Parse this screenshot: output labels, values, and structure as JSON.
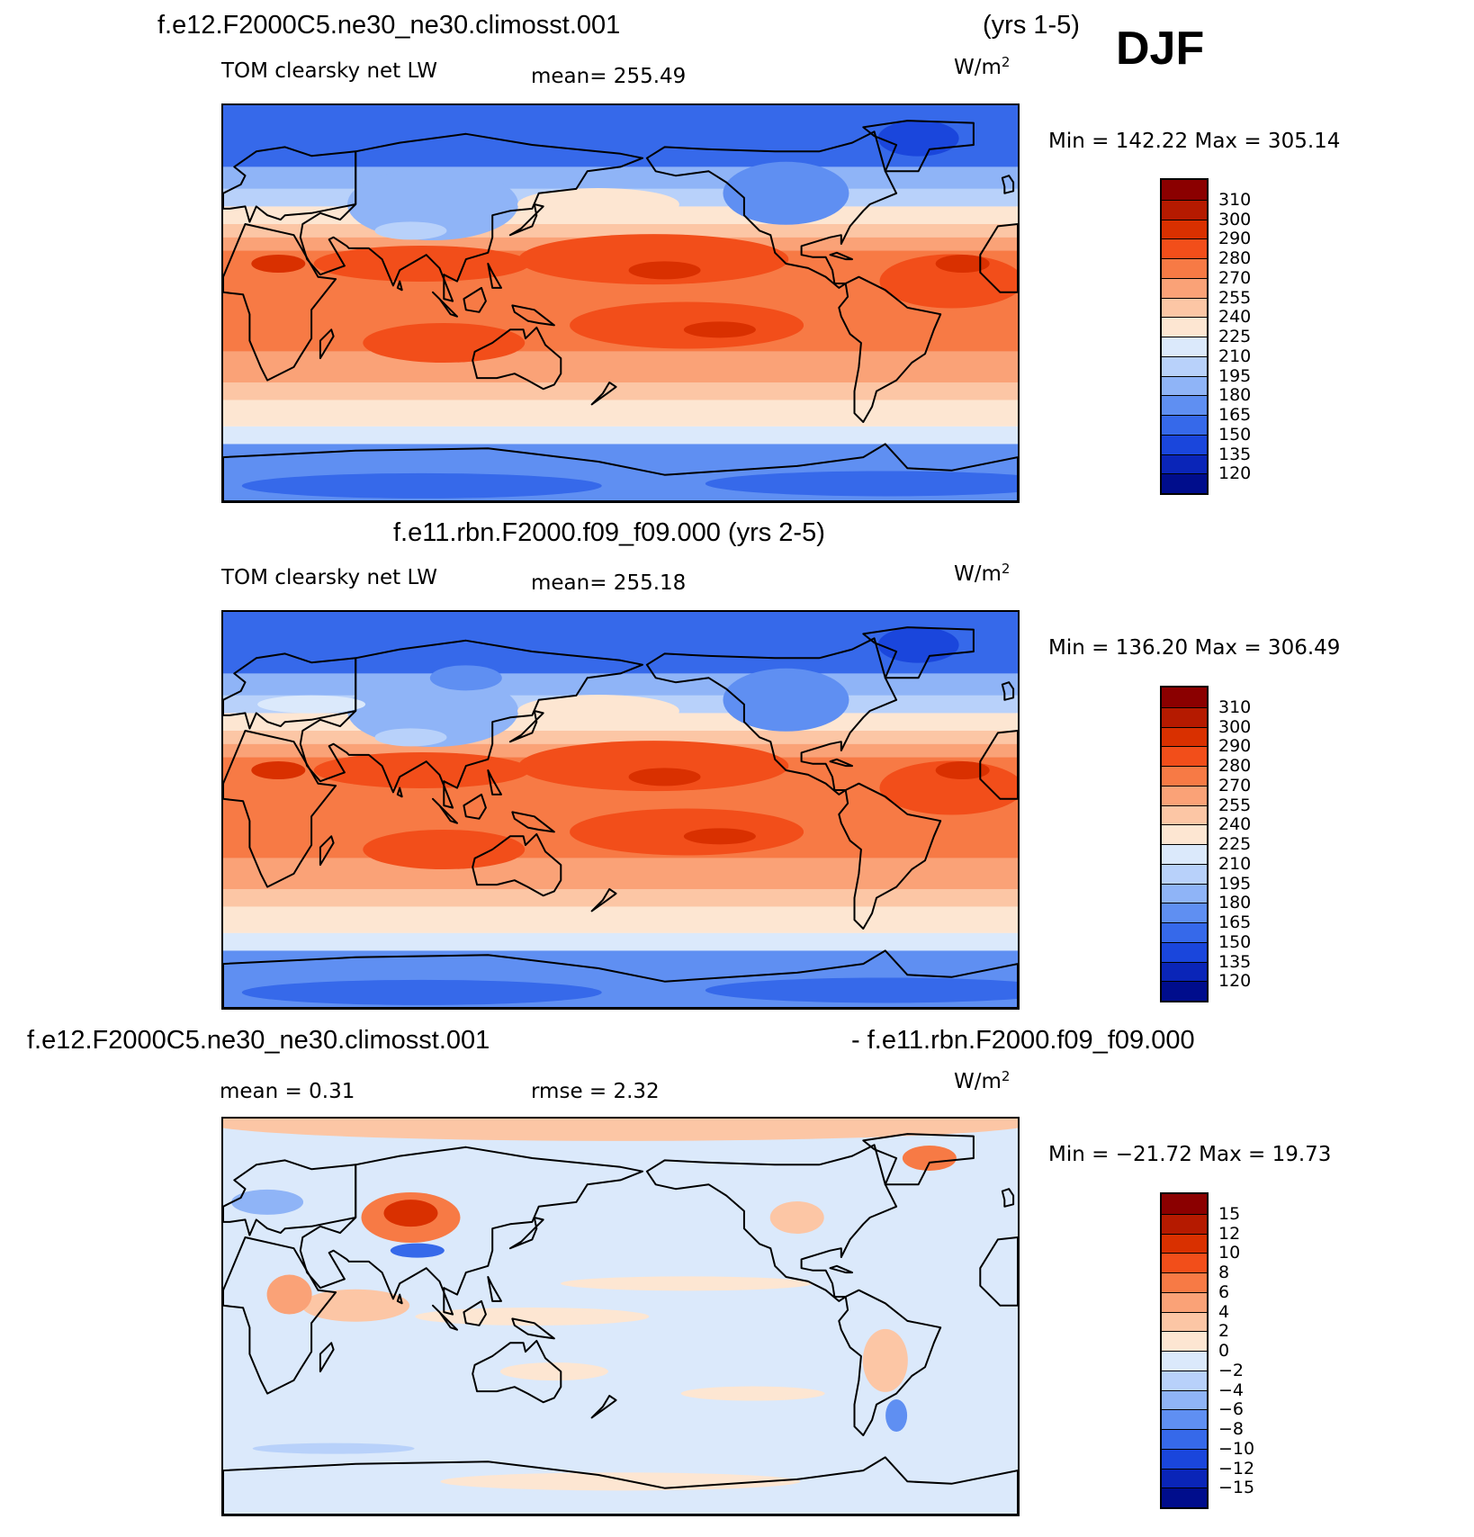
{
  "season": "DJF",
  "panels": [
    {
      "title_left": "f.e12.F2000C5.ne30_ne30.climosst.001",
      "title_right": "(yrs 1-5)",
      "variable": "TOM clearsky net LW",
      "stat1": "mean=  255.49",
      "stat2": "",
      "units": "W/m",
      "units_sup": "2",
      "minmax": "Min  =  142.22  Max  =  305.14",
      "kind": "abs",
      "colorbar": {
        "ticks": [
          "310",
          "300",
          "290",
          "280",
          "270",
          "255",
          "240",
          "225",
          "210",
          "195",
          "180",
          "165",
          "150",
          "135",
          "120"
        ],
        "colors": [
          "#8b0000",
          "#b51a00",
          "#d93000",
          "#f24e1a",
          "#f77a45",
          "#faa277",
          "#fcc6a5",
          "#fde6d2",
          "#dbe9fb",
          "#b8d1fa",
          "#8fb4f7",
          "#5f8ff2",
          "#3669ea",
          "#1a46dc",
          "#0a25b8",
          "#000d8c"
        ]
      }
    },
    {
      "title_left": "",
      "title_right": "f.e11.rbn.F2000.f09_f09.000 (yrs 2-5)",
      "variable": "TOM clearsky net LW",
      "stat1": "mean=  255.18",
      "stat2": "",
      "units": "W/m",
      "units_sup": "2",
      "minmax": "Min  =  136.20  Max  =  306.49",
      "kind": "abs",
      "colorbar": {
        "ticks": [
          "310",
          "300",
          "290",
          "280",
          "270",
          "255",
          "240",
          "225",
          "210",
          "195",
          "180",
          "165",
          "150",
          "135",
          "120"
        ],
        "colors": [
          "#8b0000",
          "#b51a00",
          "#d93000",
          "#f24e1a",
          "#f77a45",
          "#faa277",
          "#fcc6a5",
          "#fde6d2",
          "#dbe9fb",
          "#b8d1fa",
          "#8fb4f7",
          "#5f8ff2",
          "#3669ea",
          "#1a46dc",
          "#0a25b8",
          "#000d8c"
        ]
      }
    },
    {
      "title_left": "f.e12.F2000C5.ne30_ne30.climosst.001",
      "title_right": "- f.e11.rbn.F2000.f09_f09.000",
      "variable": "",
      "stat1": "mean =    0.31",
      "stat2": "rmse =    2.32",
      "units": "W/m",
      "units_sup": "2",
      "minmax": "Min  =  −21.72  Max  =   19.73",
      "kind": "diff",
      "colorbar": {
        "ticks": [
          "15",
          "12",
          "10",
          "8",
          "6",
          "4",
          "2",
          "0",
          "−2",
          "−4",
          "−6",
          "−8",
          "−10",
          "−12",
          "−15"
        ],
        "colors": [
          "#8b0000",
          "#b51a00",
          "#d93000",
          "#f24e1a",
          "#f77a45",
          "#faa277",
          "#fcc6a5",
          "#fde6d2",
          "#dbe9fb",
          "#b8d1fa",
          "#8fb4f7",
          "#5f8ff2",
          "#3669ea",
          "#1a46dc",
          "#0a25b8",
          "#000d8c"
        ]
      }
    }
  ],
  "chart_data": [
    {
      "type": "heatmap",
      "title": "f.e12.F2000C5.ne30_ne30.climosst.001 (yrs 1-5)",
      "variable": "TOM clearsky net LW",
      "units": "W/m2",
      "season": "DJF",
      "mean": 255.49,
      "min": 142.22,
      "max": 305.14,
      "contour_levels": [
        120,
        135,
        150,
        165,
        180,
        195,
        210,
        225,
        240,
        255,
        270,
        280,
        290,
        300,
        310
      ]
    },
    {
      "type": "heatmap",
      "title": "f.e11.rbn.F2000.f09_f09.000 (yrs 2-5)",
      "variable": "TOM clearsky net LW",
      "units": "W/m2",
      "season": "DJF",
      "mean": 255.18,
      "min": 136.2,
      "max": 306.49,
      "contour_levels": [
        120,
        135,
        150,
        165,
        180,
        195,
        210,
        225,
        240,
        255,
        270,
        280,
        290,
        300,
        310
      ]
    },
    {
      "type": "heatmap",
      "title": "f.e12.F2000C5.ne30_ne30.climosst.001 - f.e11.rbn.F2000.f09_f09.000",
      "units": "W/m2",
      "season": "DJF",
      "mean": 0.31,
      "rmse": 2.32,
      "min": -21.72,
      "max": 19.73,
      "contour_levels": [
        -15,
        -12,
        -10,
        -8,
        -6,
        -4,
        -2,
        0,
        2,
        4,
        6,
        8,
        10,
        12,
        15
      ]
    }
  ]
}
